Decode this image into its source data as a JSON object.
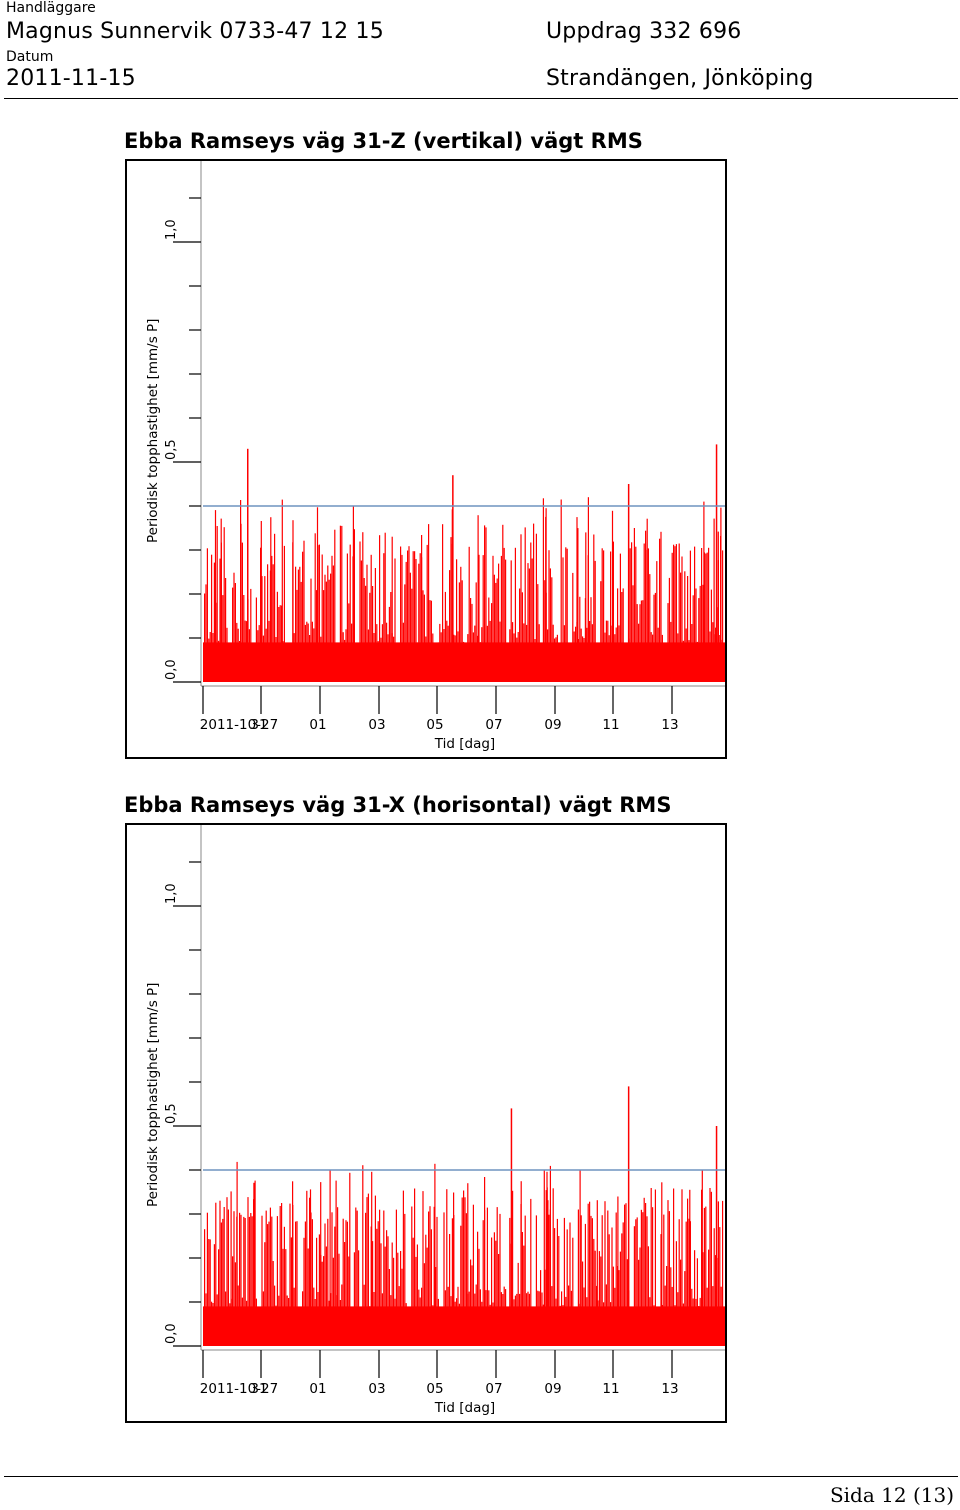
{
  "header": {
    "handler_label": "Handläggare",
    "handler_value": "Magnus Sunnervik 0733-47 12 15",
    "date_label": "Datum",
    "date_value": "2011-11-15",
    "assignment": "Uppdrag 332 696",
    "location": "Strandängen, Jönköping"
  },
  "footer": {
    "page": "Sida 12 (13)"
  },
  "colors": {
    "bars": "#ff0000",
    "limit_line": "#6e93bf",
    "frame": "#000000"
  },
  "chart_data": [
    {
      "type": "bar",
      "title": "Ebba Ramseys väg 31-Z (vertikal) vägt RMS",
      "xlabel": "Tid [dag]",
      "ylabel": "Periodisk topphastighet [mm/s P]",
      "x_tick_labels": [
        "2011-10-27",
        "31",
        "01",
        "03",
        "05",
        "07",
        "09",
        "11",
        "13"
      ],
      "y_tick_labels": [
        "0,0",
        "0,5",
        "1,0"
      ],
      "ylim": [
        0.0,
        1.2
      ],
      "limit_line": 0.4,
      "baseline": 0.09,
      "bar_color": "#ff0000",
      "notable_peaks": [
        {
          "day": "2011-10-28",
          "value": 0.53
        },
        {
          "day": "2011-11-04",
          "value": 0.47
        },
        {
          "day": "2011-11-10",
          "value": 0.45
        },
        {
          "day": "2011-11-13",
          "value": 0.54
        }
      ]
    },
    {
      "type": "bar",
      "title": "Ebba Ramseys väg 31-X (horisontal) vägt RMS",
      "xlabel": "Tid [dag]",
      "ylabel": "Periodisk topphastighet [mm/s P]",
      "x_tick_labels": [
        "2011-10-27",
        "31",
        "01",
        "03",
        "05",
        "07",
        "09",
        "11",
        "13"
      ],
      "y_tick_labels": [
        "0,0",
        "0,5",
        "1,0"
      ],
      "ylim": [
        0.0,
        1.2
      ],
      "limit_line": 0.4,
      "baseline": 0.09,
      "bar_color": "#ff0000",
      "notable_peaks": [
        {
          "day": "2011-11-06",
          "value": 0.54
        },
        {
          "day": "2011-11-10",
          "value": 0.59
        },
        {
          "day": "2011-11-13",
          "value": 0.5
        },
        {
          "day": "2011-11-14",
          "value": 0.52
        }
      ]
    }
  ]
}
